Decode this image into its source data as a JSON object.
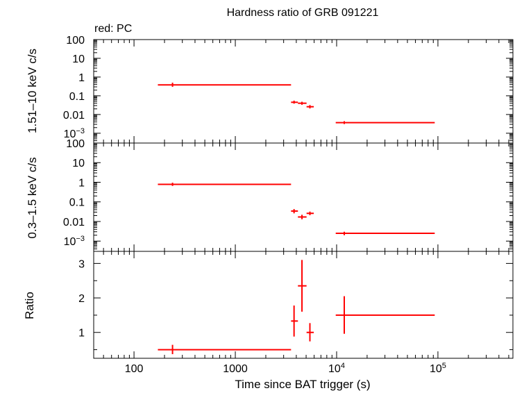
{
  "title": "Hardness ratio of GRB 091221",
  "mode_label": "red: PC",
  "colors": {
    "data": "#ff0000",
    "axis": "#000000"
  },
  "x_axis": {
    "label": "Time since BAT trigger (s)",
    "scale": "log",
    "range": [
      40,
      550000
    ],
    "ticks": [
      {
        "value": 100,
        "label": "100",
        "sup": ""
      },
      {
        "value": 1000,
        "label": "1000",
        "sup": ""
      },
      {
        "value": 10000,
        "label": "10",
        "sup": "4"
      },
      {
        "value": 100000,
        "label": "10",
        "sup": "5"
      }
    ]
  },
  "chart_data": [
    {
      "type": "scatter",
      "panel": "hard",
      "ylabel": "1.51–10 keV c/s",
      "yscale": "log",
      "ylim": [
        0.0003,
        100
      ],
      "yticks": [
        {
          "value": 100,
          "label": "100",
          "sup": ""
        },
        {
          "value": 10,
          "label": "10",
          "sup": ""
        },
        {
          "value": 1,
          "label": "1",
          "sup": ""
        },
        {
          "value": 0.1,
          "label": "0.1",
          "sup": ""
        },
        {
          "value": 0.01,
          "label": "0.01",
          "sup": ""
        },
        {
          "value": 0.001,
          "label": "10",
          "sup": "−3"
        }
      ],
      "points": [
        {
          "x": 240,
          "xlo": 172,
          "xhi": 3550,
          "y": 0.38,
          "ylo": 0.3,
          "yhi": 0.5
        },
        {
          "x": 3800,
          "xlo": 3550,
          "xhi": 4150,
          "y": 0.045,
          "ylo": 0.038,
          "yhi": 0.055
        },
        {
          "x": 4550,
          "xlo": 4150,
          "xhi": 5050,
          "y": 0.04,
          "ylo": 0.033,
          "yhi": 0.048
        },
        {
          "x": 5450,
          "xlo": 5050,
          "xhi": 5950,
          "y": 0.026,
          "ylo": 0.021,
          "yhi": 0.032
        },
        {
          "x": 11900,
          "xlo": 9800,
          "xhi": 93000,
          "y": 0.0037,
          "ylo": 0.0031,
          "yhi": 0.0044
        }
      ]
    },
    {
      "type": "scatter",
      "panel": "soft",
      "ylabel": "0.3–1.5 keV c/s",
      "yscale": "log",
      "ylim": [
        0.0003,
        100
      ],
      "yticks": [
        {
          "value": 100,
          "label": "100",
          "sup": ""
        },
        {
          "value": 10,
          "label": "10",
          "sup": ""
        },
        {
          "value": 1,
          "label": "1",
          "sup": ""
        },
        {
          "value": 0.1,
          "label": "0.1",
          "sup": ""
        },
        {
          "value": 0.01,
          "label": "0.01",
          "sup": ""
        },
        {
          "value": 0.001,
          "label": "10",
          "sup": "−3"
        }
      ],
      "points": [
        {
          "x": 240,
          "xlo": 172,
          "xhi": 3550,
          "y": 0.78,
          "ylo": 0.65,
          "yhi": 0.95
        },
        {
          "x": 3800,
          "xlo": 3550,
          "xhi": 4150,
          "y": 0.034,
          "ylo": 0.026,
          "yhi": 0.043
        },
        {
          "x": 4550,
          "xlo": 4150,
          "xhi": 5050,
          "y": 0.017,
          "ylo": 0.013,
          "yhi": 0.022
        },
        {
          "x": 5450,
          "xlo": 5050,
          "xhi": 5950,
          "y": 0.026,
          "ylo": 0.021,
          "yhi": 0.032
        },
        {
          "x": 11900,
          "xlo": 9800,
          "xhi": 93000,
          "y": 0.0025,
          "ylo": 0.002,
          "yhi": 0.003
        }
      ]
    },
    {
      "type": "scatter",
      "panel": "ratio",
      "ylabel": "Ratio",
      "yscale": "linear",
      "ylim": [
        0.25,
        3.35
      ],
      "yticks": [
        {
          "value": 1,
          "label": "1",
          "sup": ""
        },
        {
          "value": 2,
          "label": "2",
          "sup": ""
        },
        {
          "value": 3,
          "label": "3",
          "sup": ""
        }
      ],
      "points": [
        {
          "x": 240,
          "xlo": 172,
          "xhi": 3550,
          "y": 0.5,
          "ylo": 0.37,
          "yhi": 0.64
        },
        {
          "x": 3800,
          "xlo": 3550,
          "xhi": 4150,
          "y": 1.33,
          "ylo": 0.88,
          "yhi": 1.78
        },
        {
          "x": 4550,
          "xlo": 4150,
          "xhi": 5050,
          "y": 2.35,
          "ylo": 1.6,
          "yhi": 3.1
        },
        {
          "x": 5450,
          "xlo": 5050,
          "xhi": 5950,
          "y": 1.0,
          "ylo": 0.74,
          "yhi": 1.27
        },
        {
          "x": 11900,
          "xlo": 9800,
          "xhi": 93000,
          "y": 1.5,
          "ylo": 0.96,
          "yhi": 2.05
        }
      ]
    }
  ]
}
